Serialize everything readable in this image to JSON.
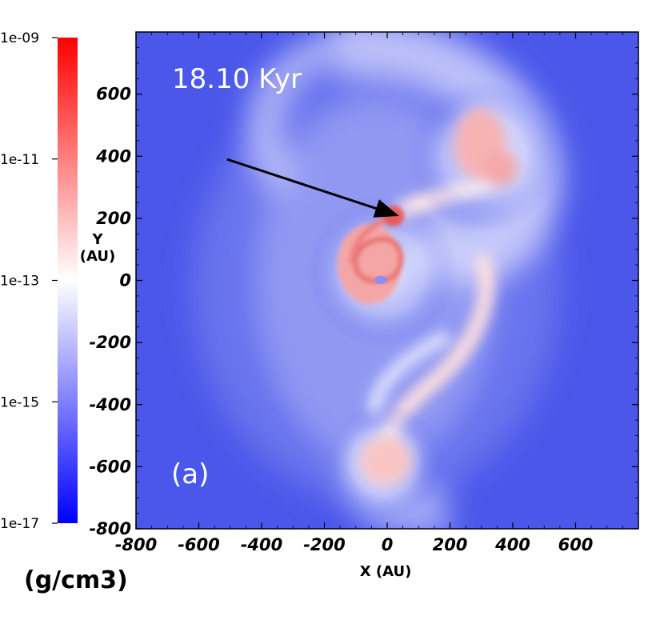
{
  "chart_data": {
    "type": "heatmap",
    "title": "",
    "time_label": "18.10 Kyr",
    "panel_label": "(a)",
    "xlabel": "X (AU)",
    "ylabel_line1": "Y",
    "ylabel_line2": "(AU)",
    "xlim": [
      -800,
      800
    ],
    "ylim": [
      -800,
      800
    ],
    "xticks": [
      -800,
      -600,
      -400,
      -200,
      0,
      200,
      400,
      600
    ],
    "yticks": [
      -800,
      -600,
      -400,
      -200,
      0,
      200,
      400,
      600
    ],
    "colorbar": {
      "quantity_units": "(g/cm3)",
      "scale": "log",
      "min": 1e-17,
      "max": 1e-09,
      "tick_labels": [
        "1e-09",
        "1e-11",
        "1e-13",
        "1e-15",
        "1e-17"
      ],
      "tick_values": [
        1e-09,
        1e-11,
        1e-13,
        1e-15,
        1e-17
      ],
      "colors": {
        "low": "#0000ff",
        "mid": "#ffffff",
        "high": "#ff0000"
      }
    },
    "features": [
      {
        "name": "central-spiral-disk",
        "x": 0,
        "y": 0,
        "density_level": "high"
      },
      {
        "name": "fragment-clump-arrowed",
        "x": 30,
        "y": 200,
        "density_level": "highest"
      },
      {
        "name": "upper-right-clump",
        "x": 310,
        "y": 420,
        "density_level": "high"
      },
      {
        "name": "lower-clump",
        "x": 0,
        "y": -590,
        "density_level": "high"
      }
    ],
    "arrow": {
      "from": [
        -510,
        390
      ],
      "to": [
        30,
        210
      ]
    },
    "background_color": "#4a57ea"
  }
}
